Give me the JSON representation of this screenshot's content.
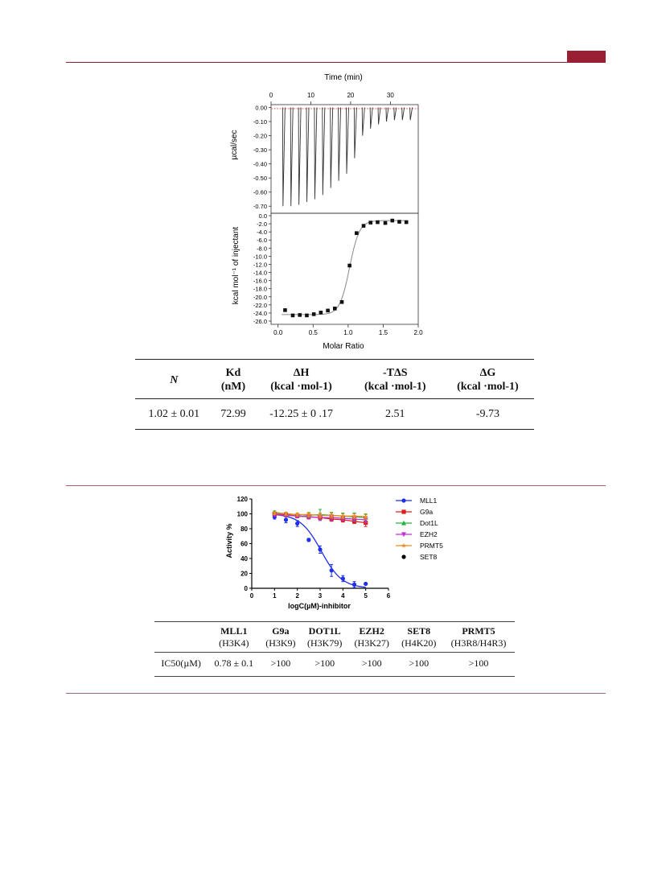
{
  "itc": {
    "top_xlabel": "Time (min)",
    "top_ylabel": "µcal/sec",
    "bottom_xlabel": "Molar Ratio",
    "bottom_ylabel": "kcal mol⁻¹ of injectant",
    "time_ticks": [
      "0",
      "10",
      "20",
      "30"
    ],
    "raw_yticks": [
      "0.00",
      "-0.10",
      "-0.20",
      "-0.30",
      "-0.40",
      "-0.50",
      "-0.60",
      "-0.70"
    ],
    "heat_yticks": [
      "0.0",
      "-2.0",
      "-4.0",
      "-6.0",
      "-8.0",
      "-10.0",
      "-12.0",
      "-14.0",
      "-16.0",
      "-18.0",
      "-20.0",
      "-22.0",
      "-24.0",
      "-26.0"
    ],
    "ratio_ticks": [
      "0.0",
      "0.5",
      "1.0",
      "1.5",
      "2.0"
    ]
  },
  "chart_data": [
    {
      "type": "line",
      "name_hint": "ITC raw thermogram",
      "xlabel": "Time (min)",
      "ylabel": "µcal/sec",
      "xlim": [
        0,
        37
      ],
      "ylim": [
        -0.75,
        0.02
      ],
      "injection_times": [
        3.0,
        5.0,
        7.0,
        9.0,
        11.0,
        13.0,
        15.0,
        17.0,
        19.0,
        21.0,
        23.0,
        25.0,
        27.0,
        29.0,
        31.0,
        33.0,
        35.0
      ],
      "peak_minima": [
        -0.7,
        -0.7,
        -0.69,
        -0.67,
        -0.65,
        -0.62,
        -0.57,
        -0.52,
        -0.47,
        -0.36,
        -0.2,
        -0.15,
        -0.12,
        -0.1,
        -0.09,
        -0.09,
        -0.09
      ]
    },
    {
      "type": "scatter",
      "name_hint": "ITC binding isotherm",
      "xlabel": "Molar Ratio",
      "ylabel": "kcal mol⁻¹ of injectant",
      "xlim": [
        -0.1,
        2.0
      ],
      "ylim": [
        -26.8,
        0.6
      ],
      "x": [
        0.1,
        0.21,
        0.31,
        0.41,
        0.51,
        0.61,
        0.71,
        0.81,
        0.91,
        1.02,
        1.12,
        1.22,
        1.32,
        1.42,
        1.53,
        1.63,
        1.73,
        1.83
      ],
      "y": [
        -23.3,
        -24.6,
        -24.5,
        -24.6,
        -24.3,
        -23.9,
        -23.4,
        -22.9,
        -21.3,
        -12.3,
        -4.3,
        -2.5,
        -1.7,
        -1.6,
        -1.8,
        -1.2,
        -1.5,
        -1.6
      ],
      "fit": {
        "top": -1.2,
        "bottom": -24.4,
        "midpoint": 1.02,
        "width": 0.07
      }
    },
    {
      "type": "scatter",
      "name_hint": "dose response",
      "xlabel": "logC(µM)-inhibitor",
      "ylabel": "Activity %",
      "xlim": [
        0,
        6
      ],
      "ylim": [
        0,
        120
      ],
      "xticks": [
        "0",
        "1",
        "2",
        "3",
        "4",
        "5",
        "6"
      ],
      "yticks": [
        "0",
        "20",
        "40",
        "60",
        "80",
        "100",
        "120"
      ],
      "x": [
        1.0,
        1.5,
        2.0,
        2.5,
        3.0,
        3.5,
        4.0,
        4.5,
        5.0
      ],
      "series": [
        {
          "name": "MLL1",
          "color": "#1f2ee8",
          "marker": "circle",
          "values": [
            96,
            92,
            87,
            65,
            52,
            24,
            13,
            5,
            6
          ],
          "err": [
            3,
            4,
            4,
            2,
            5,
            8,
            4,
            4,
            1
          ]
        },
        {
          "name": "G9a",
          "color": "#e01d1d",
          "marker": "square",
          "values": [
            100,
            99,
            97,
            96,
            95,
            93,
            92,
            90,
            88
          ],
          "err": [
            2,
            2,
            2,
            3,
            3,
            3,
            3,
            3,
            5
          ]
        },
        {
          "name": "Dot1L",
          "color": "#22b53a",
          "marker": "triangle-up",
          "values": [
            102,
            100,
            99,
            98,
            99,
            98,
            97,
            96,
            95
          ],
          "err": [
            2,
            2,
            2,
            3,
            7,
            4,
            4,
            5,
            5
          ]
        },
        {
          "name": "EZH2",
          "color": "#c32fd6",
          "marker": "triangle-down",
          "values": [
            99,
            98,
            97,
            96,
            95,
            95,
            94,
            93,
            92
          ],
          "err": [
            2,
            2,
            2,
            3,
            4,
            4,
            3,
            3,
            4
          ]
        },
        {
          "name": "PRMT5",
          "color": "#f08a1a",
          "marker": "star",
          "values": [
            101,
            100,
            99,
            99,
            98,
            98,
            97,
            97,
            96
          ],
          "err": [
            2,
            2,
            2,
            3,
            3,
            3,
            3,
            3,
            3
          ]
        },
        {
          "name": "SET8",
          "color": "#000000",
          "marker": "circle",
          "values": []
        }
      ],
      "legend_placement": "right"
    }
  ],
  "thermo_table": {
    "headers": [
      {
        "main": "N",
        "sub": ""
      },
      {
        "main": "Kd",
        "sub": "(nM)"
      },
      {
        "main": "ΔH",
        "sub": "(kcal ·mol-1)"
      },
      {
        "main": "-TΔS",
        "sub": "(kcal ·mol-1)"
      },
      {
        "main": "ΔG",
        "sub": "(kcal ·mol-1)"
      }
    ],
    "row": [
      "1.02 ± 0.01",
      "72.99",
      "-12.25 ± 0 .17",
      "2.51",
      "-9.73"
    ]
  },
  "ic50_table": {
    "headers": [
      {
        "main": "",
        "sub": ""
      },
      {
        "main": "MLL1",
        "sub": "(H3K4)"
      },
      {
        "main": "G9a",
        "sub": "(H3K9)"
      },
      {
        "main": "DOT1L",
        "sub": "(H3K79)"
      },
      {
        "main": "EZH2",
        "sub": "(H3K27)"
      },
      {
        "main": "SET8",
        "sub": "(H4K20)"
      },
      {
        "main": "PRMT5",
        "sub": "(H3R8/H4R3)"
      }
    ],
    "row_label": "IC50(µM)",
    "row": [
      "0.78 ± 0.1",
      ">100",
      ">100",
      ">100",
      ">100",
      ">100"
    ]
  },
  "colors": {
    "accent": "#9a1f33",
    "rule": "#8b2035"
  }
}
